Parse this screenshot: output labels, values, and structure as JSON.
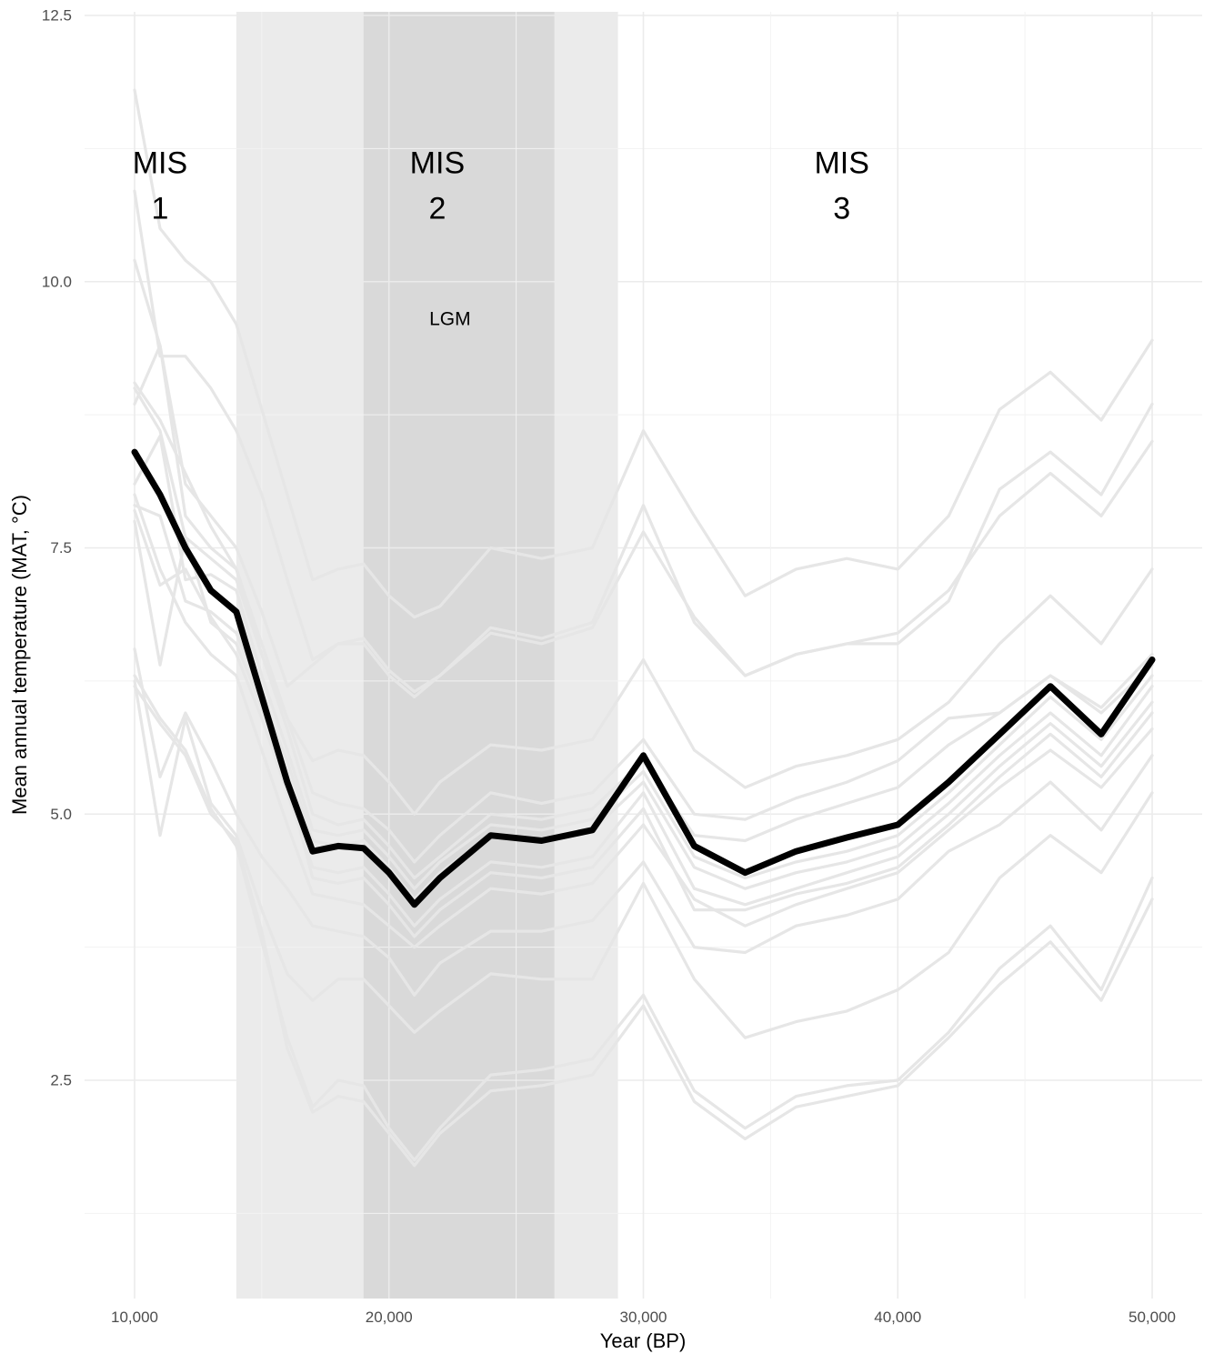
{
  "chart_data": {
    "type": "line",
    "title": "",
    "xlabel": "Year (BP)",
    "ylabel": "Mean annual temperature (MAT, °C)",
    "xlim": [
      8000,
      52000
    ],
    "ylim": [
      0.4,
      12.5
    ],
    "x_ticks": [
      10000,
      20000,
      30000,
      40000,
      50000
    ],
    "x_tick_labels": [
      "10,000",
      "20,000",
      "30,000",
      "40,000",
      "50,000"
    ],
    "y_ticks": [
      2.5,
      5.0,
      7.5,
      10.0,
      12.5
    ],
    "y_tick_labels": [
      "2.5",
      "5.0",
      "7.5",
      "10.0",
      "12.5"
    ],
    "grid": true,
    "shaded_periods": [
      {
        "name": "MIS 2",
        "x_start": 14000,
        "x_end": 29000,
        "color": "#ebebeb"
      },
      {
        "name": "LGM",
        "x_start": 19000,
        "x_end": 26500,
        "color": "#d9d9d9"
      }
    ],
    "annotations": [
      {
        "lines": [
          "MIS",
          "1"
        ],
        "x": 11000,
        "y": 10.9,
        "kind": "mis"
      },
      {
        "lines": [
          "MIS",
          "2"
        ],
        "x": 21900,
        "y": 10.9,
        "kind": "mis"
      },
      {
        "lines": [
          "MIS",
          "3"
        ],
        "x": 37800,
        "y": 10.9,
        "kind": "mis"
      },
      {
        "lines": [
          "LGM"
        ],
        "x": 22400,
        "y": 9.65,
        "kind": "lgm"
      }
    ],
    "x": [
      10000,
      11000,
      12000,
      13000,
      14000,
      15000,
      16000,
      17000,
      18000,
      19000,
      20000,
      21000,
      22000,
      24000,
      26000,
      28000,
      30000,
      32000,
      34000,
      36000,
      38000,
      40000,
      42000,
      44000,
      46000,
      48000,
      50000
    ],
    "mean_series": {
      "color": "#000000",
      "values": [
        8.4,
        8.0,
        7.5,
        7.1,
        6.9,
        6.1,
        5.3,
        4.65,
        4.7,
        4.68,
        4.45,
        4.15,
        4.4,
        4.8,
        4.75,
        4.85,
        5.55,
        4.7,
        4.45,
        4.65,
        4.78,
        4.9,
        5.3,
        5.75,
        6.2,
        5.75,
        6.45
      ]
    },
    "series_color": "#e6e6e6",
    "series": [
      {
        "values": [
          11.8,
          10.5,
          10.2,
          10.0,
          9.6,
          8.8,
          8.0,
          7.2,
          7.3,
          7.35,
          7.05,
          6.85,
          6.95,
          7.5,
          7.4,
          7.5,
          8.6,
          7.8,
          7.05,
          7.3,
          7.4,
          7.3,
          7.8,
          8.8,
          9.15,
          8.7,
          9.45
        ]
      },
      {
        "values": [
          10.85,
          9.3,
          9.3,
          9.0,
          8.6,
          8.0,
          7.2,
          6.45,
          6.6,
          6.65,
          6.35,
          6.15,
          6.3,
          6.75,
          6.65,
          6.8,
          7.9,
          6.8,
          6.3,
          6.5,
          6.6,
          6.6,
          7.0,
          8.05,
          8.4,
          8.0,
          8.85
        ]
      },
      {
        "values": [
          10.2,
          9.4,
          8.1,
          7.8,
          7.5,
          6.9,
          6.2,
          6.4,
          6.6,
          6.6,
          6.3,
          6.1,
          6.3,
          6.7,
          6.6,
          6.75,
          7.65,
          6.85,
          6.3,
          6.5,
          6.6,
          6.7,
          7.1,
          7.8,
          8.2,
          7.8,
          8.5
        ]
      },
      {
        "values": [
          9.05,
          8.7,
          8.2,
          7.7,
          7.3,
          6.5,
          5.9,
          5.5,
          5.6,
          5.55,
          5.3,
          5.0,
          5.3,
          5.65,
          5.6,
          5.7,
          6.45,
          5.6,
          5.25,
          5.45,
          5.55,
          5.7,
          6.05,
          6.6,
          7.05,
          6.6,
          7.3
        ]
      },
      {
        "values": [
          8.85,
          9.4,
          7.8,
          7.5,
          7.3,
          6.6,
          5.9,
          5.2,
          5.1,
          5.05,
          4.85,
          4.55,
          4.8,
          5.2,
          5.1,
          5.2,
          5.7,
          5.0,
          4.95,
          5.15,
          5.3,
          5.5,
          5.9,
          5.95,
          6.3,
          6.0,
          6.5
        ]
      },
      {
        "values": [
          9.0,
          8.6,
          7.6,
          7.4,
          7.2,
          6.5,
          5.8,
          5.0,
          4.9,
          4.95,
          4.7,
          4.4,
          4.6,
          5.0,
          4.95,
          5.05,
          5.5,
          4.8,
          4.75,
          4.95,
          5.1,
          5.25,
          5.65,
          5.95,
          6.3,
          5.95,
          6.4
        ]
      },
      {
        "values": [
          8.1,
          8.55,
          7.2,
          7.25,
          7.1,
          6.3,
          5.6,
          4.85,
          4.8,
          4.85,
          4.6,
          4.3,
          4.55,
          4.9,
          4.85,
          4.95,
          5.4,
          4.6,
          4.4,
          4.55,
          4.65,
          4.8,
          5.2,
          5.65,
          6.1,
          5.7,
          6.3
        ]
      },
      {
        "values": [
          7.9,
          7.8,
          7.0,
          6.9,
          6.7,
          6.1,
          5.5,
          4.75,
          4.7,
          4.75,
          4.5,
          4.2,
          4.45,
          4.8,
          4.75,
          4.85,
          5.3,
          4.5,
          4.3,
          4.45,
          4.55,
          4.7,
          5.1,
          5.55,
          5.95,
          5.55,
          6.2
        ]
      },
      {
        "values": [
          7.85,
          7.15,
          7.3,
          6.85,
          6.5,
          5.9,
          5.2,
          4.5,
          4.45,
          4.5,
          4.25,
          3.95,
          4.2,
          4.55,
          4.5,
          4.6,
          5.2,
          4.3,
          4.15,
          4.3,
          4.45,
          4.6,
          5.0,
          5.45,
          5.85,
          5.45,
          6.05
        ]
      },
      {
        "values": [
          7.75,
          6.4,
          7.6,
          6.8,
          6.6,
          6.0,
          5.3,
          4.4,
          4.35,
          4.4,
          4.15,
          3.85,
          4.1,
          4.45,
          4.4,
          4.5,
          5.05,
          4.1,
          4.1,
          4.25,
          4.35,
          4.5,
          4.9,
          5.35,
          5.75,
          5.35,
          5.95
        ]
      },
      {
        "values": [
          8.0,
          7.3,
          6.8,
          6.5,
          6.3,
          5.6,
          4.9,
          4.25,
          4.2,
          4.15,
          3.95,
          3.75,
          3.95,
          4.3,
          4.25,
          4.35,
          4.9,
          4.2,
          3.95,
          4.15,
          4.3,
          4.45,
          4.85,
          5.25,
          5.6,
          5.25,
          5.8
        ]
      },
      {
        "values": [
          6.55,
          5.35,
          5.95,
          5.5,
          5.0,
          4.6,
          4.3,
          3.95,
          3.9,
          3.85,
          3.65,
          3.3,
          3.6,
          3.9,
          3.9,
          4.0,
          4.55,
          3.75,
          3.7,
          3.95,
          4.05,
          4.2,
          4.65,
          4.9,
          5.3,
          4.85,
          5.55
        ]
      },
      {
        "values": [
          6.25,
          4.8,
          5.9,
          5.1,
          4.8,
          4.1,
          3.5,
          3.25,
          3.45,
          3.45,
          3.2,
          2.95,
          3.15,
          3.5,
          3.45,
          3.45,
          4.35,
          3.45,
          2.9,
          3.05,
          3.15,
          3.35,
          3.7,
          4.4,
          4.8,
          4.45,
          5.2
        ]
      },
      {
        "values": [
          6.3,
          5.9,
          5.6,
          5.05,
          4.7,
          3.8,
          2.9,
          2.25,
          2.5,
          2.45,
          2.05,
          1.75,
          2.05,
          2.55,
          2.6,
          2.7,
          3.3,
          2.4,
          2.05,
          2.35,
          2.45,
          2.5,
          2.95,
          3.55,
          3.95,
          3.35,
          4.4
        ]
      },
      {
        "values": [
          6.2,
          5.85,
          5.55,
          5.0,
          4.75,
          3.9,
          2.8,
          2.2,
          2.35,
          2.3,
          2.0,
          1.7,
          2.0,
          2.4,
          2.45,
          2.55,
          3.2,
          2.3,
          1.95,
          2.25,
          2.35,
          2.45,
          2.9,
          3.4,
          3.8,
          3.25,
          4.2
        ]
      }
    ]
  }
}
